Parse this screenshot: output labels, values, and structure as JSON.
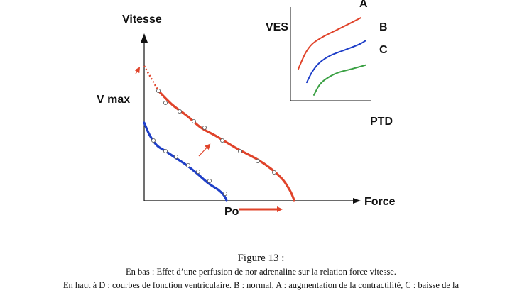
{
  "colors": {
    "augmented": "#e0432a",
    "normal": "#1f3fc8",
    "depressed": "#3aa043",
    "axis": "#111111",
    "marker_fill": "#ffffff",
    "marker_stroke": "#555555"
  },
  "chart_data": [
    {
      "type": "line",
      "title": "",
      "ylabel": "Vitesse",
      "xlabel": "Force",
      "xlim": [
        0,
        300
      ],
      "ylim": [
        0,
        235
      ],
      "grid": false,
      "annotations": {
        "vmax_label": "V max",
        "po_label": "Po"
      },
      "series": [
        {
          "name": "",
          "color": "#e0432a",
          "points": [
            [
              0,
              190
            ],
            [
              10,
              172
            ],
            [
              20,
              155
            ],
            [
              40,
              135
            ],
            [
              60,
              120
            ],
            [
              80,
              103
            ],
            [
              100,
              92
            ],
            [
              130,
              74
            ],
            [
              160,
              58
            ],
            [
              180,
              44
            ],
            [
              195,
              30
            ],
            [
              205,
              15
            ],
            [
              210,
              4
            ],
            [
              211,
              0
            ]
          ],
          "markers": [
            [
              20,
              155
            ],
            [
              30,
              138
            ],
            [
              50,
              126
            ],
            [
              70,
              112
            ],
            [
              85,
              103
            ],
            [
              110,
              85
            ],
            [
              135,
              70
            ],
            [
              160,
              56
            ],
            [
              183,
              40
            ]
          ],
          "extrapolated": [
            [
              0,
              190
            ],
            [
              20,
              155
            ]
          ]
        },
        {
          "name": "",
          "color": "#1f3fc8",
          "points": [
            [
              0,
              110
            ],
            [
              8,
              92
            ],
            [
              18,
              78
            ],
            [
              30,
              70
            ],
            [
              45,
              60
            ],
            [
              60,
              50
            ],
            [
              75,
              38
            ],
            [
              90,
              25
            ],
            [
              105,
              15
            ],
            [
              112,
              8
            ],
            [
              115,
              3
            ],
            [
              116,
              0
            ]
          ],
          "markers": [
            [
              13,
              85
            ],
            [
              30,
              70
            ],
            [
              45,
              62
            ],
            [
              62,
              50
            ],
            [
              76,
              41
            ],
            [
              92,
              28
            ],
            [
              114,
              10
            ]
          ]
        }
      ]
    },
    {
      "type": "line",
      "title": "",
      "ylabel": "VES",
      "xlabel": "PTD",
      "grid": false,
      "series": [
        {
          "name": "A",
          "color": "#e0432a",
          "points": [
            [
              0,
              0.25
            ],
            [
              0.1,
              0.45
            ],
            [
              0.2,
              0.57
            ],
            [
              0.35,
              0.66
            ],
            [
              0.55,
              0.75
            ],
            [
              0.75,
              0.84
            ],
            [
              0.88,
              0.9
            ]
          ]
        },
        {
          "name": "B",
          "color": "#1f3fc8",
          "points": [
            [
              0.12,
              0.08
            ],
            [
              0.2,
              0.22
            ],
            [
              0.3,
              0.33
            ],
            [
              0.45,
              0.42
            ],
            [
              0.65,
              0.49
            ],
            [
              0.85,
              0.56
            ],
            [
              0.95,
              0.61
            ]
          ]
        },
        {
          "name": "C",
          "color": "#3aa043",
          "points": [
            [
              0.22,
              -0.08
            ],
            [
              0.3,
              0.05
            ],
            [
              0.4,
              0.13
            ],
            [
              0.55,
              0.2
            ],
            [
              0.75,
              0.25
            ],
            [
              0.95,
              0.3
            ]
          ]
        }
      ]
    }
  ],
  "caption": {
    "title": "Figure 13 :",
    "line1": "En bas : Effet d’une perfusion de nor adrenaline sur la relation force vitesse.",
    "line2": "En haut à D : courbes de fonction ventriculaire. B : normal, A : augmentation de la contractilité, C : baisse de la"
  }
}
